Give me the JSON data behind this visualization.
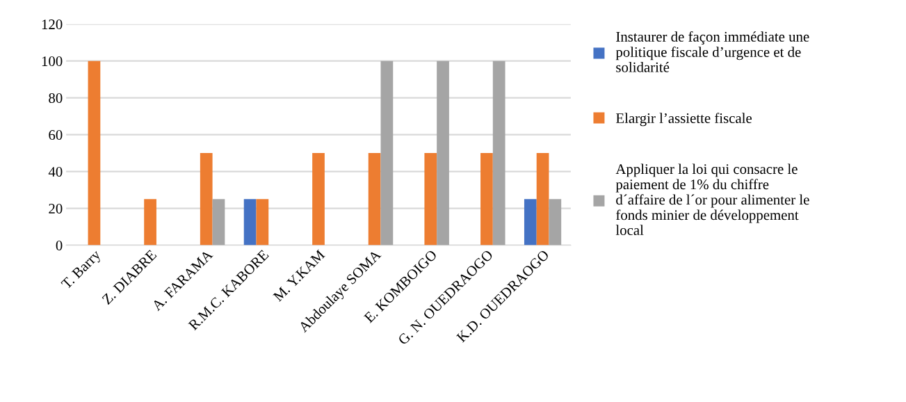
{
  "chart_data": {
    "type": "bar",
    "categories": [
      "T. Barry",
      "Z. DIABRE",
      "A. FARAMA",
      "R.M.C. KABORE",
      "M. Y.KAM",
      "Abdoulaye SOMA",
      "E. KOMBOIGO",
      "G. N. OUEDRAOGO",
      "K.D. OUEDRAOGO"
    ],
    "series": [
      {
        "name": "Instaurer de façon immédiate une\npolitique fiscale d’urgence et de\nsolidarité",
        "color": "#4472c4",
        "values": [
          0,
          0,
          0,
          25,
          0,
          0,
          0,
          0,
          25
        ]
      },
      {
        "name": "Elargir l’assiette fiscale",
        "color": "#ed7d31",
        "values": [
          100,
          25,
          50,
          25,
          50,
          50,
          50,
          50,
          50
        ]
      },
      {
        "name": "Appliquer la loi qui consacre le\npaiement de 1% du chiffre\nd´affaire de l´or pour alimenter le\nfonds minier de développement\nlocal",
        "color": "#a5a5a5",
        "values": [
          0,
          0,
          25,
          0,
          0,
          100,
          100,
          100,
          25
        ]
      }
    ],
    "ylim": [
      0,
      120
    ],
    "yticks": [
      0,
      20,
      40,
      60,
      80,
      100,
      120
    ],
    "grid": "y",
    "legend": "right"
  }
}
